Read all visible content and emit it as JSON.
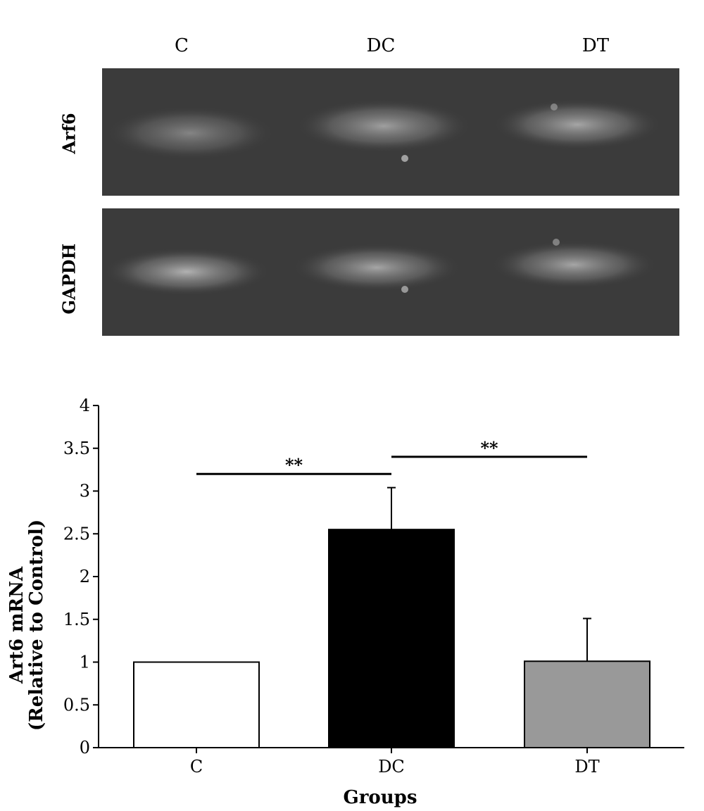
{
  "gel": {
    "lane_labels": [
      "C",
      "DC",
      "DT"
    ],
    "rows": [
      {
        "label": "Arf6",
        "lane_intensity": [
          0.55,
          0.7,
          0.75
        ]
      },
      {
        "label": "GAPDH",
        "lane_intensity": [
          0.75,
          0.7,
          0.7
        ]
      }
    ],
    "background_color": "#3a3a3a",
    "band_color": "#d8d8d8"
  },
  "chart_data": {
    "type": "bar",
    "categories": [
      "C",
      "DC",
      "DT"
    ],
    "values": [
      1.0,
      2.55,
      1.01
    ],
    "errors": [
      0,
      0.49,
      0.5
    ],
    "bar_colors": [
      "#ffffff",
      "#000000",
      "#999999"
    ],
    "xlabel": "Groups",
    "ylabel_line1": "Art6 mRNA",
    "ylabel_line2": "(Relative to Control)",
    "ylim": [
      0,
      4
    ],
    "yticks": [
      "0",
      "0.5",
      "1",
      "1.5",
      "2",
      "2.5",
      "3",
      "3.5",
      "4"
    ],
    "significance": [
      {
        "from": "C",
        "to": "DC",
        "y": 3.2,
        "label": "**"
      },
      {
        "from": "DC",
        "to": "DT",
        "y": 3.4,
        "label": "**"
      }
    ]
  }
}
